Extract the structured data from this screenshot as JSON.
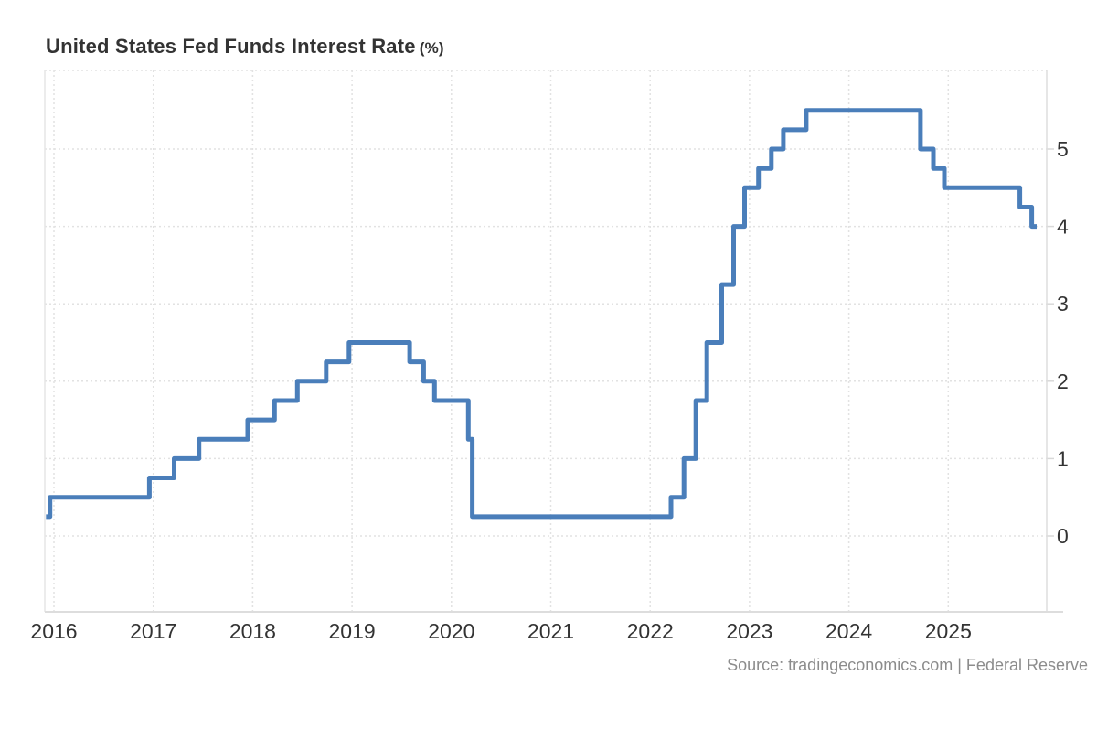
{
  "title": {
    "main": "United States Fed Funds Interest Rate",
    "unit": "(%)"
  },
  "source": "Source: tradingeconomics.com | Federal Reserve",
  "colors": {
    "line": "#4a7eba",
    "grid": "#e2e2e2",
    "border": "#e6e6e6",
    "axis": "#dddddd",
    "tick": "#d8d8d8",
    "axis_label": "#333333",
    "title_text": "#333333",
    "source_text": "#8c8c8c",
    "background": "#ffffff"
  },
  "chart_data": {
    "type": "line",
    "subtype": "step-after",
    "title": "United States Fed Funds Interest Rate (%)",
    "xlabel": "",
    "ylabel": "",
    "unit": "%",
    "series_name": "Fed Funds Interest Rate",
    "grid": true,
    "legend": "none",
    "y_axis_side": "right",
    "ylim": [
      0,
      5.75
    ],
    "xlim": [
      2015.9,
      2026.0
    ],
    "yticks": [
      0,
      1,
      2,
      3,
      4,
      5
    ],
    "xticks": [
      2016,
      2017,
      2018,
      2019,
      2020,
      2021,
      2022,
      2023,
      2024,
      2025
    ],
    "steps": [
      [
        2015.92,
        0.25
      ],
      [
        2015.96,
        0.5
      ],
      [
        2016.96,
        0.75
      ],
      [
        2017.21,
        1.0
      ],
      [
        2017.46,
        1.25
      ],
      [
        2017.95,
        1.5
      ],
      [
        2018.22,
        1.75
      ],
      [
        2018.45,
        2.0
      ],
      [
        2018.74,
        2.25
      ],
      [
        2018.97,
        2.5
      ],
      [
        2019.58,
        2.25
      ],
      [
        2019.72,
        2.0
      ],
      [
        2019.83,
        1.75
      ],
      [
        2020.17,
        1.25
      ],
      [
        2020.21,
        0.25
      ],
      [
        2022.21,
        0.5
      ],
      [
        2022.34,
        1.0
      ],
      [
        2022.46,
        1.75
      ],
      [
        2022.57,
        2.5
      ],
      [
        2022.72,
        3.25
      ],
      [
        2022.84,
        4.0
      ],
      [
        2022.95,
        4.5
      ],
      [
        2023.09,
        4.75
      ],
      [
        2023.22,
        5.0
      ],
      [
        2023.34,
        5.25
      ],
      [
        2023.57,
        5.5
      ],
      [
        2024.72,
        5.0
      ],
      [
        2024.85,
        4.75
      ],
      [
        2024.96,
        4.5
      ],
      [
        2025.72,
        4.25
      ],
      [
        2025.84,
        4.0
      ]
    ],
    "series_end_x": 2025.89,
    "last_value": 4.0
  }
}
